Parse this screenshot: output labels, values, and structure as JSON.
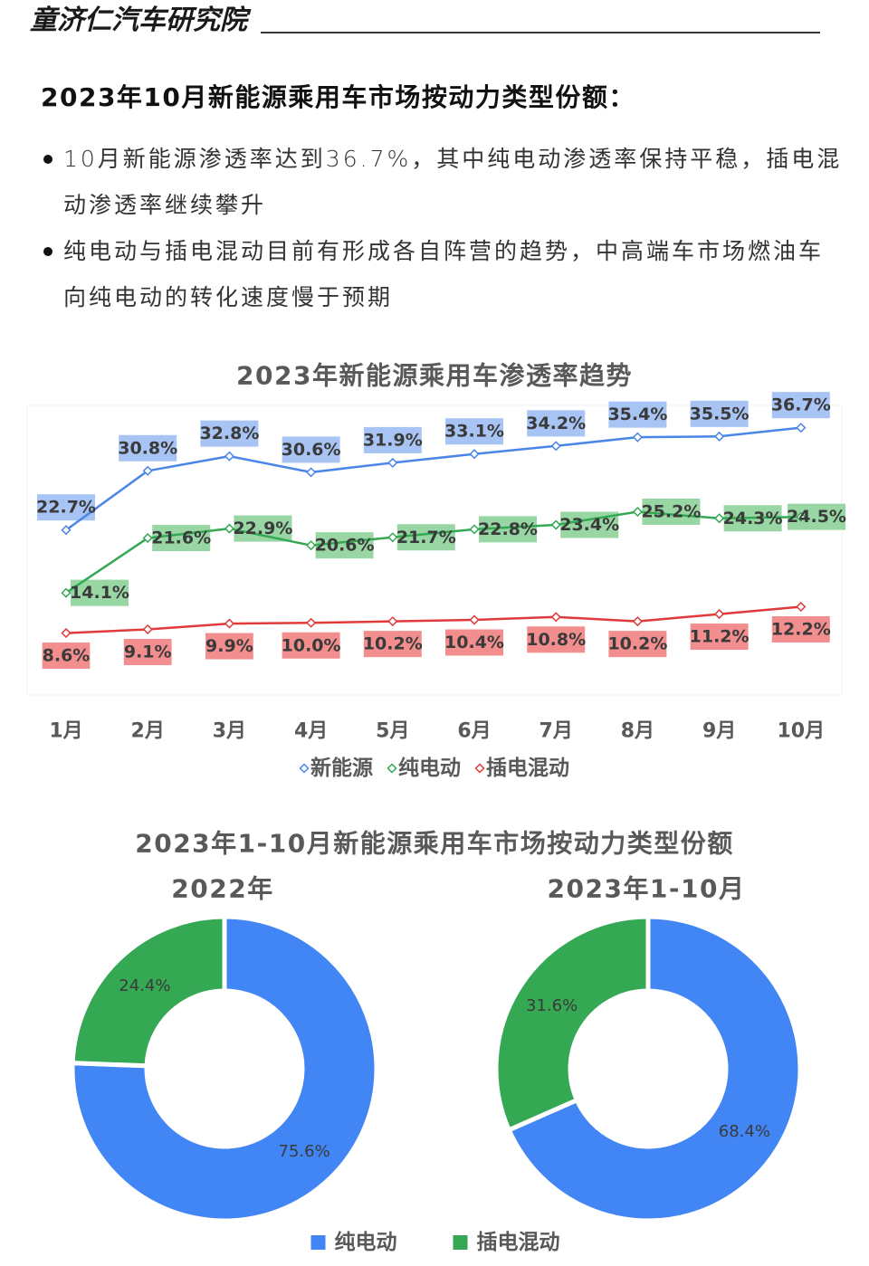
{
  "header": {
    "org_name": "童济仁汽车研究院"
  },
  "title": "2023年10月新能源乘用车市场按动力类型份额：",
  "bullets": [
    {
      "lines": [
        "10月新能源渗透率达到36.7%，其中纯电动渗透率保持平稳，插电混",
        "动渗透率继续攀升"
      ]
    },
    {
      "lines": [
        "纯电动与插电混动目前有形成各自阵营的趋势，中高端车市场燃油车",
        "向纯电动的转化速度慢于预期"
      ]
    }
  ],
  "chart_data": [
    {
      "type": "line",
      "title": "2023年新能源乘用车渗透率趋势",
      "categories": [
        "1月",
        "2月",
        "3月",
        "4月",
        "5月",
        "6月",
        "7月",
        "8月",
        "9月",
        "10月"
      ],
      "ylim": [
        0,
        40
      ],
      "grid": false,
      "legend": "bottom",
      "series": [
        {
          "name": "新能源",
          "color": "#4a86e8",
          "label_color": "#a8c4f4",
          "label_position": "above",
          "values": [
            22.7,
            30.8,
            32.8,
            30.6,
            31.9,
            33.1,
            34.2,
            35.4,
            35.5,
            36.7
          ],
          "labels": [
            "22.7%",
            "30.8%",
            "32.8%",
            "30.6%",
            "31.9%",
            "33.1%",
            "34.2%",
            "35.4%",
            "35.5%",
            "36.7%"
          ]
        },
        {
          "name": "纯电动",
          "color": "#34a853",
          "label_color": "#98d6a4",
          "label_position": "right",
          "values": [
            14.1,
            21.6,
            22.9,
            20.6,
            21.7,
            22.8,
            23.4,
            25.2,
            24.3,
            24.5
          ],
          "labels": [
            "14.1%",
            "21.6%",
            "22.9%",
            "20.6%",
            "21.7%",
            "22.8%",
            "23.4%",
            "25.2%",
            "24.3%",
            "24.5%"
          ]
        },
        {
          "name": "插电混动",
          "color": "#e03a3a",
          "label_color": "#f38e8e",
          "label_position": "below",
          "values": [
            8.6,
            9.1,
            9.9,
            10.0,
            10.2,
            10.4,
            10.8,
            10.2,
            11.2,
            12.2
          ],
          "labels": [
            "8.6%",
            "9.1%",
            "9.9%",
            "10.0%",
            "10.2%",
            "10.4%",
            "10.8%",
            "10.2%",
            "11.2%",
            "12.2%"
          ]
        }
      ]
    },
    {
      "type": "pie",
      "donut": true,
      "title": "2023年1-10月新能源乘用车市场按动力类型份额",
      "legend": "bottom",
      "categories": [
        "纯电动",
        "插电混动"
      ],
      "colors": [
        "#4285f4",
        "#34a853"
      ],
      "pies": [
        {
          "subtitle": "2022年",
          "values": [
            75.6,
            24.4
          ],
          "labels": [
            "75.6%",
            "24.4%"
          ]
        },
        {
          "subtitle": "2023年1-10月",
          "values": [
            68.4,
            31.6
          ],
          "labels": [
            "68.4%",
            "31.6%"
          ]
        }
      ]
    }
  ]
}
